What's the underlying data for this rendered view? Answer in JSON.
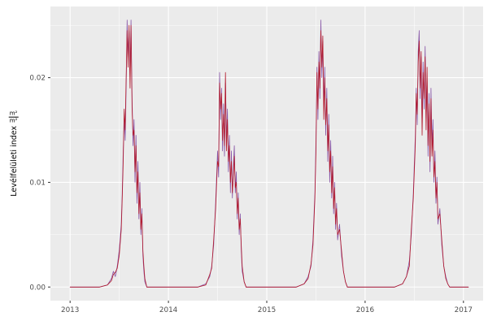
{
  "chart_data": {
    "type": "line",
    "title": "",
    "xlabel": "",
    "ylabel": {
      "text": "Levélfelületi index",
      "frac_numerator": "m²",
      "frac_denominator": "m²"
    },
    "legend": "none",
    "grid": "on",
    "x_ticks": {
      "values": [
        2013,
        2014,
        2015,
        2016,
        2017
      ],
      "labels": [
        "2013",
        "2014",
        "2015",
        "2016",
        "2017"
      ]
    },
    "y_ticks": {
      "values": [
        0,
        0.01,
        0.02
      ],
      "labels": [
        "0.00",
        "0.01",
        "0.02"
      ]
    },
    "x_minor": [
      2013.5,
      2014.5,
      2015.5,
      2016.5
    ],
    "y_minor": [
      0.005,
      0.015,
      0.025
    ],
    "xlim": [
      2012.8,
      2017.2
    ],
    "ylim": [
      -0.0013,
      0.0268
    ],
    "colors": {
      "panel": "#EBEBEB",
      "grid": "#FFFFFF",
      "tick_text": "#4D4D4D",
      "series1": "#8856A7",
      "series2": "#B2182B"
    },
    "x": [
      2013.0,
      2013.3,
      2013.38,
      2013.42,
      2013.44,
      2013.46,
      2013.48,
      2013.5,
      2013.52,
      2013.53,
      2013.54,
      2013.55,
      2013.56,
      2013.57,
      2013.58,
      2013.59,
      2013.6,
      2013.61,
      2013.62,
      2013.63,
      2013.64,
      2013.65,
      2013.66,
      2013.67,
      2013.68,
      2013.69,
      2013.7,
      2013.71,
      2013.72,
      2013.73,
      2013.74,
      2013.75,
      2013.76,
      2013.78,
      2014.3,
      2014.38,
      2014.42,
      2014.44,
      2014.46,
      2014.48,
      2014.5,
      2014.51,
      2014.52,
      2014.53,
      2014.54,
      2014.55,
      2014.56,
      2014.57,
      2014.58,
      2014.59,
      2014.6,
      2014.61,
      2014.62,
      2014.63,
      2014.64,
      2014.65,
      2014.66,
      2014.67,
      2014.68,
      2014.69,
      2014.7,
      2014.71,
      2014.72,
      2014.73,
      2014.74,
      2014.75,
      2014.77,
      2014.79,
      2015.3,
      2015.38,
      2015.42,
      2015.45,
      2015.47,
      2015.49,
      2015.5,
      2015.51,
      2015.52,
      2015.53,
      2015.54,
      2015.55,
      2015.56,
      2015.57,
      2015.58,
      2015.59,
      2015.6,
      2015.61,
      2015.62,
      2015.63,
      2015.64,
      2015.65,
      2015.66,
      2015.67,
      2015.68,
      2015.69,
      2015.7,
      2015.71,
      2015.72,
      2015.74,
      2015.76,
      2015.78,
      2015.8,
      2015.82,
      2016.3,
      2016.38,
      2016.42,
      2016.45,
      2016.47,
      2016.49,
      2016.51,
      2016.52,
      2016.53,
      2016.54,
      2016.55,
      2016.56,
      2016.57,
      2016.58,
      2016.59,
      2016.6,
      2016.61,
      2016.62,
      2016.63,
      2016.64,
      2016.65,
      2016.66,
      2016.67,
      2016.68,
      2016.69,
      2016.7,
      2016.71,
      2016.72,
      2016.73,
      2016.74,
      2016.76,
      2016.78,
      2016.8,
      2016.82,
      2016.84,
      2016.86,
      2017.0,
      2017.05
    ],
    "series": [
      {
        "name": "series-1",
        "color": "#8856A7",
        "y": [
          0,
          0,
          0.0002,
          0.0008,
          0.0015,
          0.001,
          0.002,
          0.0035,
          0.006,
          0.009,
          0.013,
          0.016,
          0.014,
          0.019,
          0.0255,
          0.022,
          0.0245,
          0.02,
          0.0255,
          0.018,
          0.0135,
          0.016,
          0.01,
          0.0145,
          0.008,
          0.012,
          0.0065,
          0.01,
          0.005,
          0.0075,
          0.003,
          0.0015,
          0.0005,
          0,
          0,
          0.0003,
          0.001,
          0.002,
          0.004,
          0.008,
          0.013,
          0.0105,
          0.0205,
          0.016,
          0.019,
          0.013,
          0.0175,
          0.0125,
          0.0195,
          0.014,
          0.017,
          0.011,
          0.0145,
          0.009,
          0.013,
          0.0085,
          0.0115,
          0.0135,
          0.009,
          0.011,
          0.0065,
          0.009,
          0.005,
          0.007,
          0.0035,
          0.0015,
          0.0005,
          0,
          0,
          0.0003,
          0.001,
          0.002,
          0.0045,
          0.009,
          0.014,
          0.021,
          0.016,
          0.0225,
          0.018,
          0.0255,
          0.02,
          0.0235,
          0.017,
          0.021,
          0.0145,
          0.019,
          0.012,
          0.0165,
          0.01,
          0.014,
          0.0085,
          0.0125,
          0.007,
          0.01,
          0.0055,
          0.008,
          0.0045,
          0.006,
          0.003,
          0.0015,
          0.0005,
          0,
          0,
          0.0003,
          0.001,
          0.0025,
          0.005,
          0.009,
          0.0145,
          0.019,
          0.0155,
          0.0225,
          0.0245,
          0.018,
          0.022,
          0.0155,
          0.0215,
          0.017,
          0.023,
          0.016,
          0.02,
          0.0125,
          0.0185,
          0.011,
          0.019,
          0.0135,
          0.016,
          0.01,
          0.013,
          0.008,
          0.0105,
          0.006,
          0.0075,
          0.004,
          0.002,
          0.001,
          0.0003,
          0,
          0,
          0
        ]
      },
      {
        "name": "series-2",
        "color": "#B2182B",
        "y": [
          0,
          0,
          0.0002,
          0.0006,
          0.0012,
          0.0014,
          0.0018,
          0.003,
          0.0055,
          0.0085,
          0.012,
          0.017,
          0.015,
          0.02,
          0.0245,
          0.021,
          0.025,
          0.019,
          0.025,
          0.017,
          0.0145,
          0.015,
          0.011,
          0.0135,
          0.009,
          0.011,
          0.007,
          0.009,
          0.0055,
          0.007,
          0.0035,
          0.002,
          0.0008,
          0,
          0,
          0.0002,
          0.0012,
          0.0018,
          0.0045,
          0.0075,
          0.012,
          0.0115,
          0.0195,
          0.017,
          0.0185,
          0.014,
          0.0165,
          0.0135,
          0.0205,
          0.013,
          0.016,
          0.012,
          0.0135,
          0.01,
          0.012,
          0.009,
          0.0105,
          0.0125,
          0.0095,
          0.01,
          0.007,
          0.0085,
          0.0055,
          0.0065,
          0.004,
          0.002,
          0.0005,
          0,
          0,
          0.0003,
          0.0008,
          0.0022,
          0.004,
          0.0085,
          0.013,
          0.0205,
          0.017,
          0.0215,
          0.019,
          0.0245,
          0.021,
          0.024,
          0.016,
          0.02,
          0.0155,
          0.018,
          0.013,
          0.0155,
          0.011,
          0.013,
          0.009,
          0.0115,
          0.0075,
          0.0095,
          0.006,
          0.0075,
          0.005,
          0.0055,
          0.0035,
          0.0015,
          0.0005,
          0,
          0,
          0.0003,
          0.001,
          0.002,
          0.0055,
          0.0085,
          0.0135,
          0.0185,
          0.0165,
          0.0215,
          0.0235,
          0.019,
          0.0225,
          0.0145,
          0.0205,
          0.018,
          0.022,
          0.015,
          0.021,
          0.0135,
          0.0175,
          0.012,
          0.018,
          0.0125,
          0.015,
          0.0105,
          0.012,
          0.0085,
          0.01,
          0.0065,
          0.007,
          0.0045,
          0.002,
          0.0008,
          0.0003,
          0,
          0,
          0
        ]
      }
    ]
  }
}
